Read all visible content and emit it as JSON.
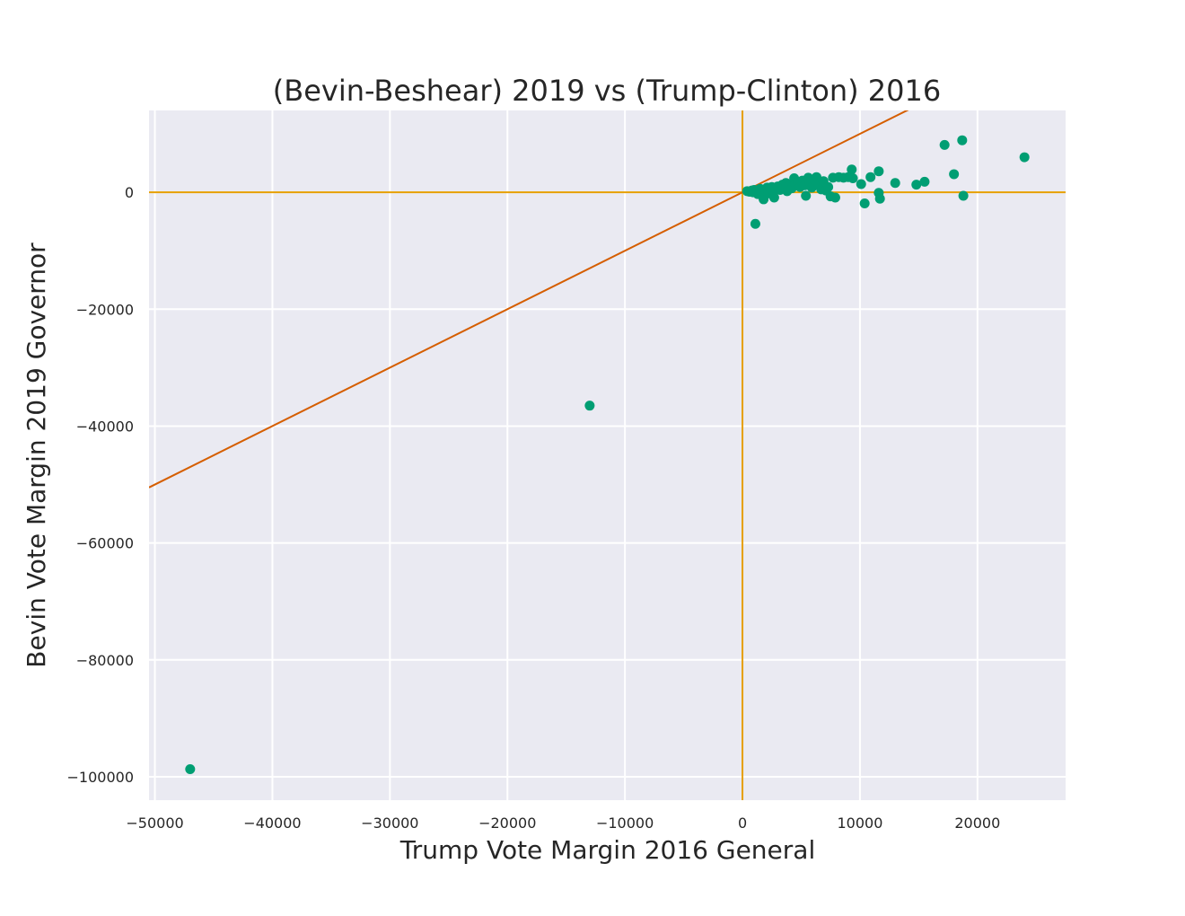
{
  "chart_data": {
    "type": "scatter",
    "title": "(Bevin-Beshear) 2019 vs (Trump-Clinton) 2016",
    "xlabel": "Trump Vote Margin 2016 General",
    "ylabel": "Bevin Vote Margin 2019 Governor",
    "xlim": [
      -50500,
      27500
    ],
    "ylim": [
      -104000,
      14000
    ],
    "xticks": [
      -50000,
      -40000,
      -30000,
      -20000,
      -10000,
      0,
      10000,
      20000
    ],
    "xtick_labels": [
      "−50000",
      "−40000",
      "−30000",
      "−20000",
      "−10000",
      "0",
      "10000",
      "20000"
    ],
    "yticks": [
      0,
      -20000,
      -40000,
      -60000,
      -80000,
      -100000
    ],
    "ytick_labels": [
      "0",
      "−20000",
      "−40000",
      "−60000",
      "−80000",
      "−100000"
    ],
    "grid": true,
    "colors": {
      "background": "#eaeaf2",
      "grid": "#ffffff",
      "points": "#009e73",
      "zero_lines": "#e69f00",
      "reference_line": "#d55e00"
    },
    "reference_lines": [
      {
        "kind": "horizontal",
        "y": 0
      },
      {
        "kind": "vertical",
        "x": 0
      },
      {
        "kind": "diagonal",
        "slope": 1,
        "intercept": 0
      }
    ],
    "series": [
      {
        "points": [
          [
            -47000,
            -98700
          ],
          [
            -13000,
            -36500
          ],
          [
            1100,
            -5400
          ],
          [
            400,
            200
          ],
          [
            600,
            100
          ],
          [
            800,
            300
          ],
          [
            900,
            0
          ],
          [
            1000,
            400
          ],
          [
            1200,
            200
          ],
          [
            1300,
            -300
          ],
          [
            1500,
            600
          ],
          [
            1600,
            100
          ],
          [
            1800,
            -1200
          ],
          [
            1900,
            500
          ],
          [
            2000,
            300
          ],
          [
            2100,
            800
          ],
          [
            2200,
            -200
          ],
          [
            2400,
            600
          ],
          [
            2500,
            900
          ],
          [
            2600,
            200
          ],
          [
            2700,
            -900
          ],
          [
            2800,
            700
          ],
          [
            3000,
            1000
          ],
          [
            3200,
            400
          ],
          [
            3400,
            1300
          ],
          [
            3500,
            800
          ],
          [
            3700,
            1600
          ],
          [
            3800,
            200
          ],
          [
            4000,
            1100
          ],
          [
            4200,
            700
          ],
          [
            4400,
            2400
          ],
          [
            4500,
            1400
          ],
          [
            4700,
            1800
          ],
          [
            4900,
            900
          ],
          [
            5100,
            2000
          ],
          [
            5300,
            1200
          ],
          [
            5400,
            -600
          ],
          [
            5600,
            2500
          ],
          [
            5700,
            1700
          ],
          [
            5900,
            800
          ],
          [
            6100,
            2200
          ],
          [
            6300,
            2600
          ],
          [
            6500,
            1400
          ],
          [
            6700,
            500
          ],
          [
            6900,
            1900
          ],
          [
            7100,
            300
          ],
          [
            7300,
            900
          ],
          [
            7500,
            -700
          ],
          [
            7700,
            2500
          ],
          [
            7900,
            -900
          ],
          [
            8200,
            2600
          ],
          [
            8600,
            2500
          ],
          [
            9000,
            2600
          ],
          [
            9300,
            3900
          ],
          [
            9400,
            2400
          ],
          [
            10100,
            1400
          ],
          [
            10400,
            -1900
          ],
          [
            10900,
            2600
          ],
          [
            11600,
            3600
          ],
          [
            11600,
            -100
          ],
          [
            11700,
            -1100
          ],
          [
            13000,
            1600
          ],
          [
            14800,
            1300
          ],
          [
            15500,
            1800
          ],
          [
            17200,
            8100
          ],
          [
            18000,
            3100
          ],
          [
            18700,
            8900
          ],
          [
            18800,
            -600
          ],
          [
            24000,
            6000
          ]
        ]
      }
    ]
  }
}
